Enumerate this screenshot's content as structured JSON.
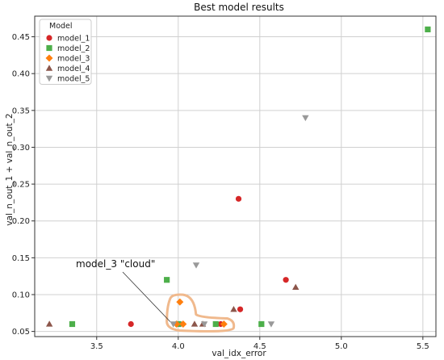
{
  "chart_data": {
    "type": "scatter",
    "title": "Best model results",
    "xlabel": "val_idx_error",
    "ylabel": "val_n_out_1 + val_n_out_2",
    "xlim": [
      3.12,
      5.58
    ],
    "ylim": [
      0.043,
      0.478
    ],
    "xticks": [
      3.5,
      4.0,
      4.5,
      5.0,
      5.5
    ],
    "xtick_labels": [
      "3.5",
      "4.0",
      "4.5",
      "5.0",
      "5.5"
    ],
    "yticks": [
      0.05,
      0.1,
      0.15,
      0.2,
      0.25,
      0.3,
      0.35,
      0.4,
      0.45
    ],
    "ytick_labels": [
      "0.05",
      "0.10",
      "0.15",
      "0.20",
      "0.25",
      "0.30",
      "0.35",
      "0.40",
      "0.45"
    ],
    "grid": true,
    "legend": {
      "title": "Model",
      "placement": "top-left"
    },
    "series": [
      {
        "name": "model_1",
        "marker": "circle",
        "color": "#d62728",
        "points": [
          [
            3.71,
            0.06
          ],
          [
            4.01,
            0.06
          ],
          [
            4.26,
            0.06
          ],
          [
            4.37,
            0.23
          ],
          [
            4.38,
            0.08
          ],
          [
            4.66,
            0.12
          ]
        ]
      },
      {
        "name": "model_2",
        "marker": "square",
        "color": "#4daf4a",
        "points": [
          [
            3.35,
            0.06
          ],
          [
            3.93,
            0.12
          ],
          [
            4.0,
            0.06
          ],
          [
            4.23,
            0.06
          ],
          [
            4.51,
            0.06
          ],
          [
            5.53,
            0.46
          ]
        ]
      },
      {
        "name": "model_3",
        "marker": "diamond",
        "color": "#ff7f0e",
        "points": [
          [
            3.99,
            0.06
          ],
          [
            4.01,
            0.09
          ],
          [
            4.03,
            0.06
          ],
          [
            4.28,
            0.06
          ]
        ]
      },
      {
        "name": "model_4",
        "marker": "triangle-up",
        "color": "#8c564b",
        "points": [
          [
            3.21,
            0.06
          ],
          [
            4.1,
            0.06
          ],
          [
            4.15,
            0.06
          ],
          [
            4.34,
            0.08
          ],
          [
            4.72,
            0.11
          ]
        ]
      },
      {
        "name": "model_5",
        "marker": "triangle-down",
        "color": "#999999",
        "points": [
          [
            3.97,
            0.06
          ],
          [
            4.11,
            0.14
          ],
          [
            4.16,
            0.06
          ],
          [
            4.57,
            0.06
          ],
          [
            4.78,
            0.34
          ]
        ]
      }
    ],
    "annotation": {
      "text": "model_3 \"cloud\"",
      "target_series": "model_3",
      "highlight_color": "#f0b98d"
    }
  }
}
